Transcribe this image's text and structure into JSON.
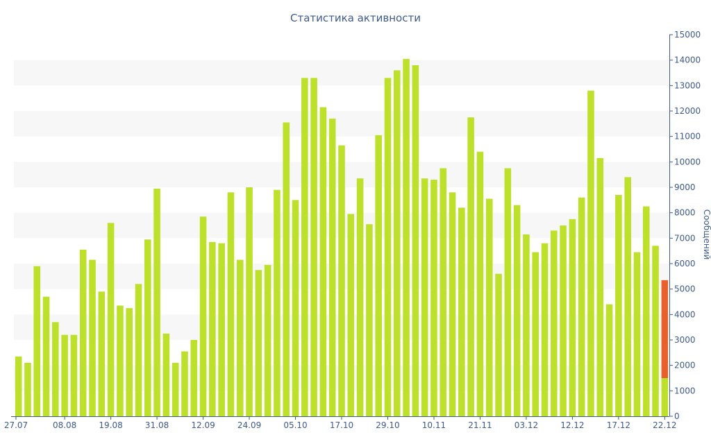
{
  "chart_data": {
    "type": "bar",
    "title": "Статистика активности",
    "ylabel": "Сообщений",
    "xlabel": "",
    "ylim": [
      0,
      15000
    ],
    "y_ticks": [
      0,
      1000,
      2000,
      3000,
      4000,
      5000,
      6000,
      7000,
      8000,
      9000,
      10000,
      11000,
      12000,
      13000,
      14000,
      15000
    ],
    "y_axis_side": "right",
    "grid": "alternating horizontal bands",
    "x_tick_labels": [
      {
        "index": 0,
        "label": "27.07"
      },
      {
        "index": 5,
        "label": "08.08"
      },
      {
        "index": 10,
        "label": "19.08"
      },
      {
        "index": 15,
        "label": "31.08"
      },
      {
        "index": 20,
        "label": "12.09"
      },
      {
        "index": 25,
        "label": "24.09"
      },
      {
        "index": 30,
        "label": "05.10"
      },
      {
        "index": 35,
        "label": "17.10"
      },
      {
        "index": 40,
        "label": "29.10"
      },
      {
        "index": 45,
        "label": "10.11"
      },
      {
        "index": 50,
        "label": "21.11"
      },
      {
        "index": 55,
        "label": "03.12"
      },
      {
        "index": 60,
        "label": "12.12"
      },
      {
        "index": 65,
        "label": "17.12"
      },
      {
        "index": 70,
        "label": "22.12"
      }
    ],
    "series": [
      {
        "color": "#bde02a",
        "values": [
          2350,
          2100,
          5900,
          4700,
          3700,
          3200,
          3200,
          6550,
          6150,
          4900,
          7600,
          4350,
          4250,
          5200,
          6950,
          8950,
          3250,
          2100,
          2550,
          3000,
          7850,
          6850,
          6800,
          8800,
          6150,
          9000,
          5750,
          5950,
          8900,
          11550,
          8500,
          13300,
          13300,
          12150,
          11700,
          10650,
          7950,
          9350,
          7550,
          11050,
          13300,
          13600,
          14050,
          13800,
          9350,
          9300,
          9750,
          8800,
          8200,
          11750,
          10400,
          8550,
          5600,
          9750,
          8300,
          7150,
          6450,
          6800,
          7300,
          7500,
          7750,
          8600,
          12800,
          10150,
          4400,
          8700,
          9400,
          6450,
          8250,
          6700,
          1500
        ]
      },
      {
        "color": "#e8612c",
        "values": [
          0,
          0,
          0,
          0,
          0,
          0,
          0,
          0,
          0,
          0,
          0,
          0,
          0,
          0,
          0,
          0,
          0,
          0,
          0,
          0,
          0,
          0,
          0,
          0,
          0,
          0,
          0,
          0,
          0,
          0,
          0,
          0,
          0,
          0,
          0,
          0,
          0,
          0,
          0,
          0,
          0,
          0,
          0,
          0,
          0,
          0,
          0,
          0,
          0,
          0,
          0,
          0,
          0,
          0,
          0,
          0,
          0,
          0,
          0,
          0,
          0,
          0,
          0,
          0,
          0,
          0,
          0,
          0,
          0,
          0,
          3850
        ]
      }
    ]
  }
}
